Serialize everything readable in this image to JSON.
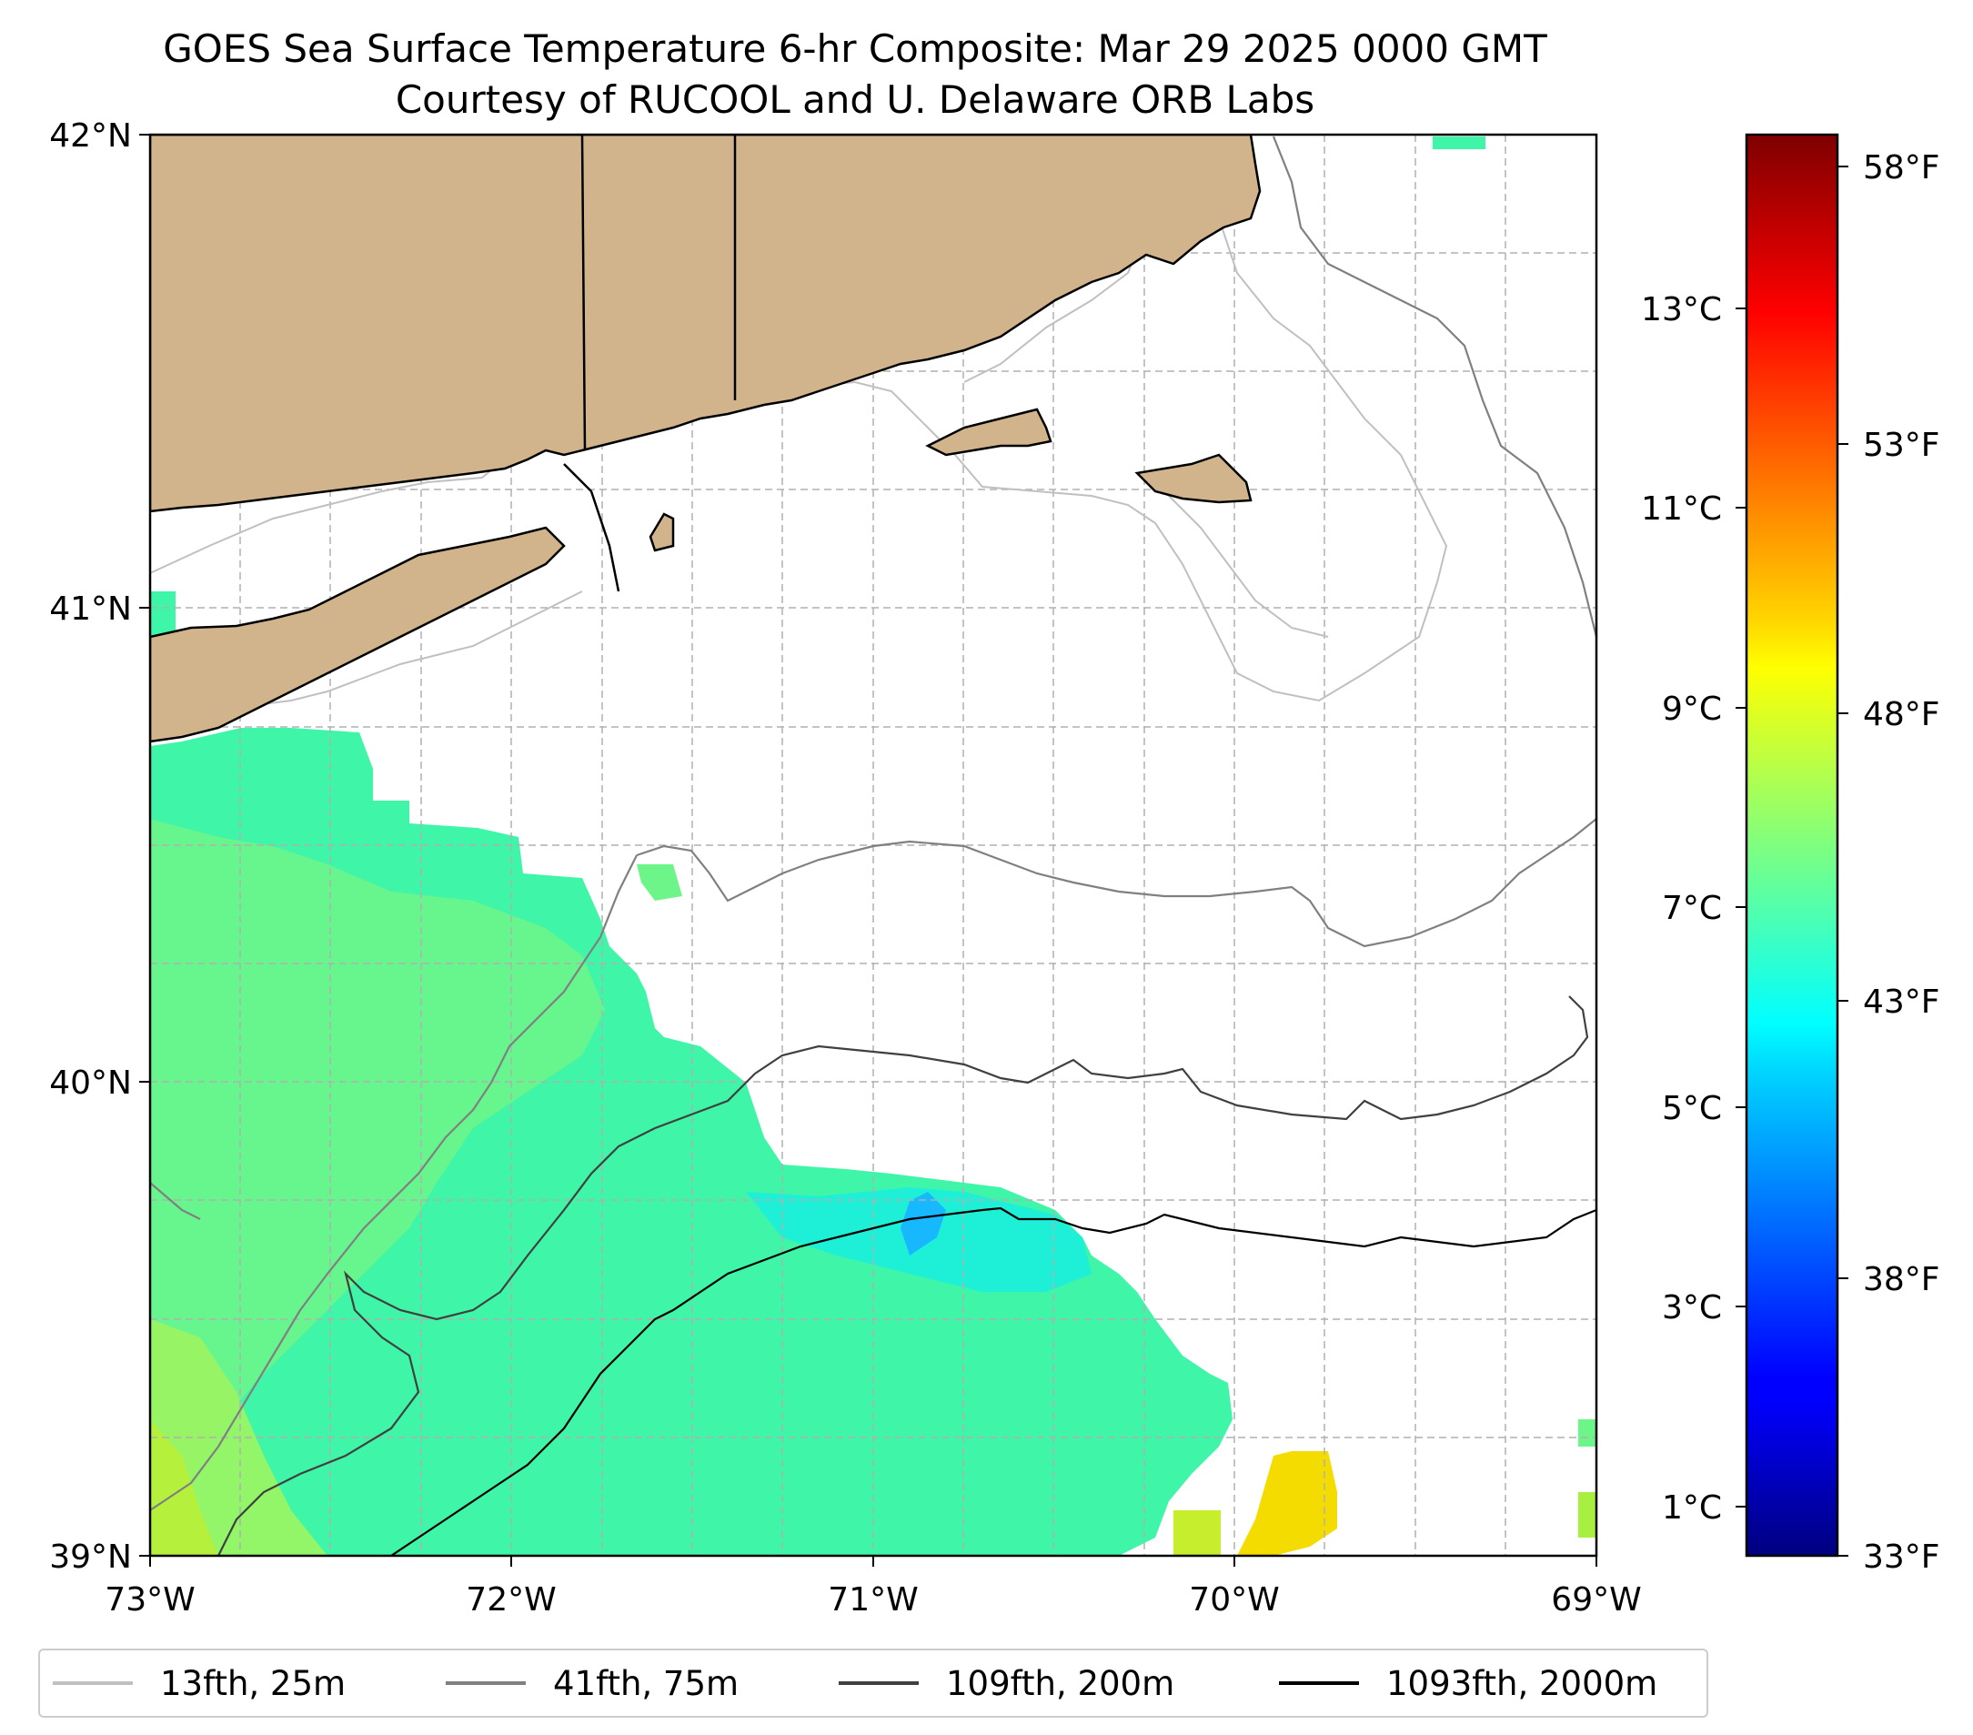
{
  "title": {
    "line1": "GOES Sea Surface Temperature 6-hr Composite: Mar 29 2025 0000 GMT",
    "line2": "Courtesy of RUCOOL and U. Delaware ORB Labs"
  },
  "map": {
    "lon_range": [
      -73,
      -69
    ],
    "lat_range": [
      39,
      42
    ],
    "x_tick_labels": [
      "73°W",
      "72°W",
      "71°W",
      "70°W",
      "69°W"
    ],
    "y_tick_labels": [
      "39°N",
      "40°N",
      "41°N",
      "42°N"
    ],
    "land_color": "#d2b48c",
    "ocean_nodata_color": "#ffffff",
    "gridlines": "dashed",
    "places_depicted": [
      "Long Island",
      "Connecticut",
      "Rhode Island",
      "Massachusetts",
      "Cape Cod",
      "Martha's Vineyard",
      "Nantucket",
      "Block Island"
    ]
  },
  "colorbar": {
    "colormap": "jet",
    "celsius_labels": [
      "1°C",
      "3°C",
      "5°C",
      "7°C",
      "9°C",
      "11°C",
      "13°C"
    ],
    "fahrenheit_labels": [
      "33°F",
      "38°F",
      "43°F",
      "48°F",
      "53°F",
      "58°F"
    ]
  },
  "legend": {
    "items": [
      {
        "label": "13fth, 25m",
        "color": "#c0c0c0"
      },
      {
        "label": "41fth, 75m",
        "color": "#808080"
      },
      {
        "label": "109fth, 200m",
        "color": "#404040"
      },
      {
        "label": "1093fth, 2000m",
        "color": "#000000"
      }
    ]
  }
}
